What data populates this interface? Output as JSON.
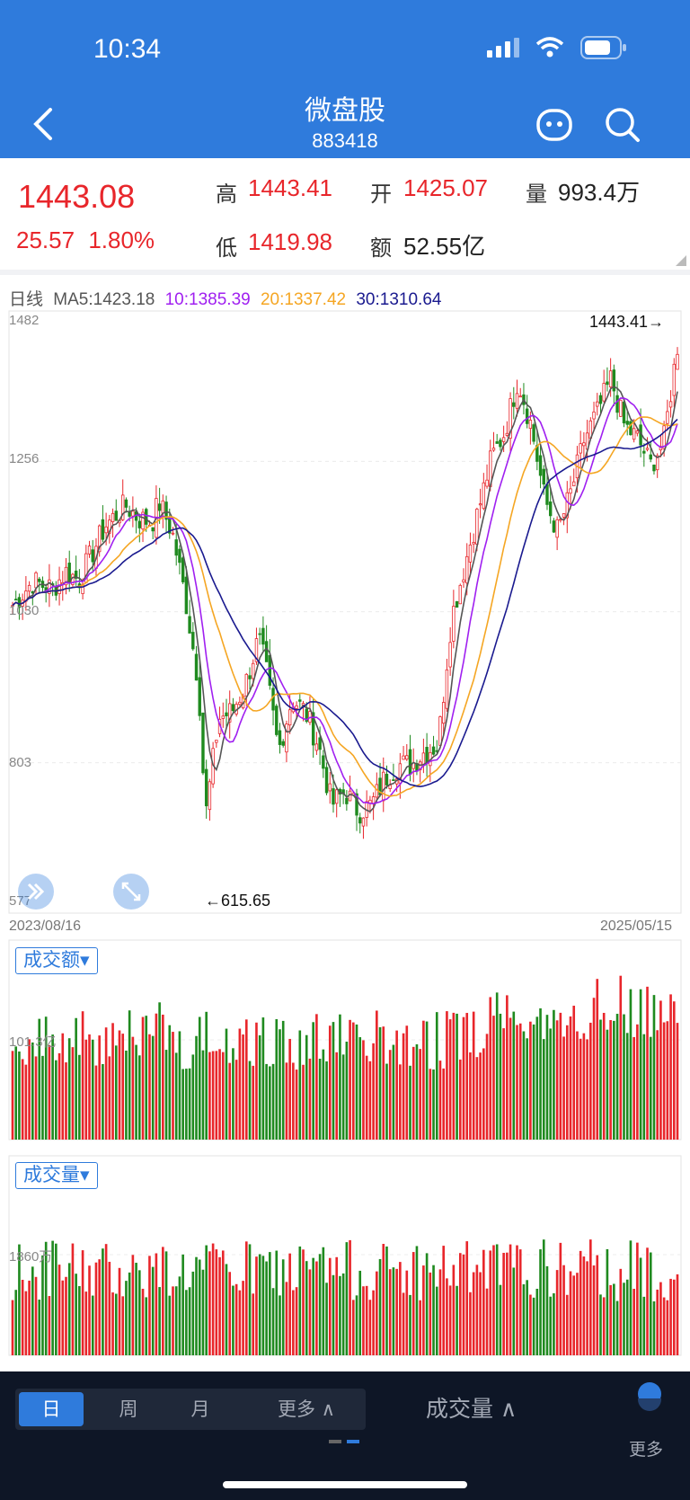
{
  "status": {
    "time": "10:34"
  },
  "header": {
    "title": "微盘股",
    "code": "883418"
  },
  "quote": {
    "price": "1443.08",
    "change": "25.57",
    "change_pct": "1.80%",
    "high_label": "高",
    "high": "1443.41",
    "open_label": "开",
    "open": "1425.07",
    "volume_label": "量",
    "volume": "993.4万",
    "low_label": "低",
    "low": "1419.98",
    "amount_label": "额",
    "amount": "52.55亿"
  },
  "legend": {
    "period": "日线",
    "ma5": "MA5:1423.18",
    "ma10": "10:1385.39",
    "ma20": "20:1337.42",
    "ma30": "30:1310.64",
    "colors": {
      "ma5": "#555555",
      "ma10": "#a020f0",
      "ma20": "#f5a623",
      "ma30": "#1a1a8f",
      "up": "#e8262b",
      "down": "#1f8a1f"
    }
  },
  "chart": {
    "y_ticks": [
      "1482",
      "1256",
      "1030",
      "803",
      "577"
    ],
    "max_marker": "1443.41→",
    "min_marker": "←615.65",
    "start_date": "2023/08/16",
    "end_date": "2025/05/15"
  },
  "amount_panel": {
    "selector": "成交额▾",
    "tick": "101.3亿"
  },
  "volume_panel": {
    "selector": "成交量▾",
    "tick": "1860万"
  },
  "bottom": {
    "tabs": [
      "日",
      "周",
      "月",
      "更多 ∧"
    ],
    "indicator": "成交量  ∧",
    "more": "更多"
  },
  "chart_data": {
    "type": "candlestick",
    "ylim": [
      577,
      1482
    ],
    "x_range": [
      "2023/08/16",
      "2025/05/15"
    ],
    "close_path": [
      [
        0,
        1040
      ],
      [
        3,
        1075
      ],
      [
        6,
        1065
      ],
      [
        8,
        1090
      ],
      [
        10,
        1078
      ],
      [
        14,
        1160
      ],
      [
        17,
        1190
      ],
      [
        19,
        1170
      ],
      [
        21,
        1165
      ],
      [
        22,
        1195
      ],
      [
        24,
        1150
      ],
      [
        26,
        1050
      ],
      [
        28,
        920
      ],
      [
        29,
        720
      ],
      [
        31,
        870
      ],
      [
        33,
        880
      ],
      [
        35,
        920
      ],
      [
        37,
        990
      ],
      [
        38,
        950
      ],
      [
        40,
        820
      ],
      [
        42,
        900
      ],
      [
        44,
        880
      ],
      [
        46,
        830
      ],
      [
        48,
        740
      ],
      [
        50,
        760
      ],
      [
        52,
        730
      ],
      [
        54,
        740
      ],
      [
        56,
        780
      ],
      [
        58,
        800
      ],
      [
        60,
        800
      ],
      [
        62,
        820
      ],
      [
        64,
        830
      ],
      [
        66,
        1020
      ],
      [
        68,
        1100
      ],
      [
        70,
        1180
      ],
      [
        72,
        1260
      ],
      [
        74,
        1300
      ],
      [
        76,
        1380
      ],
      [
        78,
        1310
      ],
      [
        80,
        1200
      ],
      [
        82,
        1150
      ],
      [
        84,
        1210
      ],
      [
        86,
        1290
      ],
      [
        88,
        1330
      ],
      [
        90,
        1380
      ],
      [
        92,
        1310
      ],
      [
        94,
        1290
      ],
      [
        96,
        1250
      ],
      [
        98,
        1290
      ],
      [
        100,
        1430
      ]
    ],
    "series": [
      {
        "name": "MA5",
        "value": 1423.18
      },
      {
        "name": "10",
        "value": 1385.39
      },
      {
        "name": "20",
        "value": 1337.42
      },
      {
        "name": "30",
        "value": 1310.64
      }
    ],
    "max": 1443.41,
    "min": 615.65
  }
}
